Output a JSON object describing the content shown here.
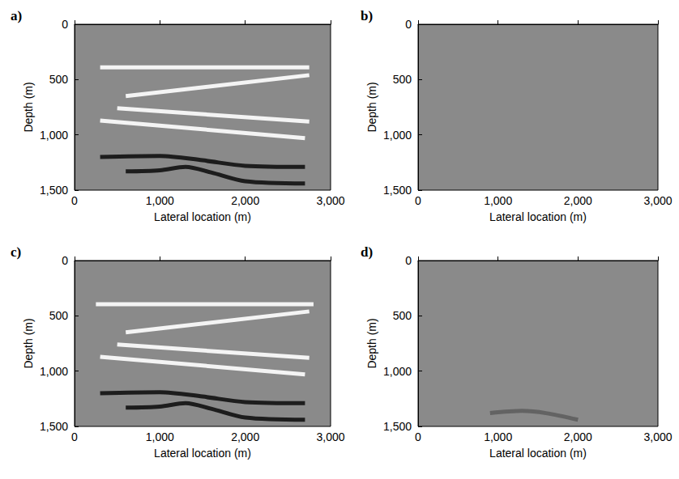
{
  "chart_data": [
    {
      "type": "line",
      "title": "a)",
      "x_label": "Lateral location (m)",
      "y_label": "Depth (m)",
      "xlim": [
        0,
        3000
      ],
      "ylim": [
        0,
        1500
      ],
      "xticks": [
        0,
        1000,
        2000,
        3000
      ],
      "yticks": [
        0,
        500,
        1000,
        1500
      ],
      "series": [
        {
          "color": "#ffffff",
          "x": [
            300,
            2750
          ],
          "values": [
            390,
            390
          ]
        },
        {
          "color": "#ffffff",
          "x": [
            600,
            2750
          ],
          "values": [
            650,
            460
          ]
        },
        {
          "color": "#ffffff",
          "x": [
            500,
            2750
          ],
          "values": [
            760,
            880
          ]
        },
        {
          "color": "#ffffff",
          "x": [
            300,
            2700
          ],
          "values": [
            870,
            1030
          ]
        },
        {
          "color": "#111111",
          "x": [
            300,
            1000,
            1500,
            2000,
            2700
          ],
          "values": [
            1200,
            1190,
            1230,
            1280,
            1290
          ]
        },
        {
          "color": "#111111",
          "x": [
            600,
            1000,
            1300,
            1600,
            2000,
            2700
          ],
          "values": [
            1330,
            1320,
            1290,
            1340,
            1420,
            1440
          ]
        }
      ]
    },
    {
      "type": "line",
      "title": "b)",
      "x_label": "Lateral location (m)",
      "y_label": "Depth (m)",
      "xlim": [
        0,
        3000
      ],
      "ylim": [
        0,
        1500
      ],
      "xticks": [
        0,
        1000,
        2000,
        3000
      ],
      "yticks": [
        0,
        500,
        1000,
        1500
      ],
      "series": []
    },
    {
      "type": "line",
      "title": "c)",
      "x_label": "Lateral location (m)",
      "y_label": "Depth (m)",
      "xlim": [
        0,
        3000
      ],
      "ylim": [
        0,
        1500
      ],
      "xticks": [
        0,
        1000,
        2000,
        3000
      ],
      "yticks": [
        0,
        500,
        1000,
        1500
      ],
      "series": [
        {
          "color": "#ffffff",
          "x": [
            250,
            2800
          ],
          "values": [
            395,
            395
          ]
        },
        {
          "color": "#ffffff",
          "x": [
            600,
            2750
          ],
          "values": [
            650,
            460
          ]
        },
        {
          "color": "#ffffff",
          "x": [
            500,
            2750
          ],
          "values": [
            760,
            880
          ]
        },
        {
          "color": "#ffffff",
          "x": [
            300,
            2700
          ],
          "values": [
            870,
            1030
          ]
        },
        {
          "color": "#111111",
          "x": [
            300,
            1000,
            1500,
            2000,
            2700
          ],
          "values": [
            1200,
            1190,
            1230,
            1280,
            1290
          ]
        },
        {
          "color": "#111111",
          "x": [
            600,
            1000,
            1300,
            1600,
            2000,
            2700
          ],
          "values": [
            1330,
            1320,
            1290,
            1340,
            1420,
            1440
          ]
        }
      ]
    },
    {
      "type": "line",
      "title": "d)",
      "x_label": "Lateral location (m)",
      "y_label": "Depth (m)",
      "xlim": [
        0,
        3000
      ],
      "ylim": [
        0,
        1500
      ],
      "xticks": [
        0,
        1000,
        2000,
        3000
      ],
      "yticks": [
        0,
        500,
        1000,
        1500
      ],
      "series": [
        {
          "color": "#5e5e5e",
          "x": [
            900,
            1300,
            1600,
            2000
          ],
          "values": [
            1380,
            1360,
            1380,
            1440
          ]
        }
      ]
    }
  ]
}
